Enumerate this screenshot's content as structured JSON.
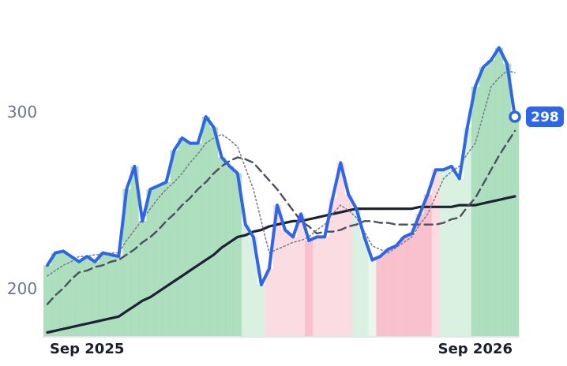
{
  "chart_data": {
    "type": "line",
    "categories": [
      null,
      null,
      null,
      null,
      null,
      "Sep 2025",
      null,
      null,
      null,
      null,
      null,
      null,
      null,
      null,
      null,
      null,
      null,
      null,
      null,
      null,
      null,
      null,
      null,
      null,
      null,
      null,
      null,
      null,
      null,
      null,
      null,
      null,
      null,
      null,
      null,
      null,
      null,
      null,
      null,
      null,
      null,
      null,
      null,
      null,
      null,
      null,
      null,
      null,
      null,
      null,
      null,
      null,
      null,
      null,
      "Sep 2026",
      null,
      null,
      null,
      null,
      null
    ],
    "series": [
      {
        "color": "#2f66e8",
        "style": "solid",
        "width": 4,
        "values": [
          214,
          221,
          222,
          219,
          216,
          219,
          216,
          221,
          220,
          219,
          257,
          270,
          239,
          257,
          259,
          261,
          279,
          286,
          283,
          283,
          298,
          292,
          275,
          270,
          266,
          237,
          230,
          203,
          212,
          248,
          234,
          230,
          243,
          228,
          230,
          230,
          252,
          272,
          254,
          246,
          230,
          217,
          219,
          223,
          225,
          230,
          232,
          243,
          254,
          268,
          268,
          270,
          263,
          292,
          315,
          326,
          330,
          337,
          328,
          298
        ]
      },
      {
        "color": "#7a8190",
        "style": "dotted",
        "width": 1.6,
        "values": [
          208,
          211,
          214,
          216,
          219,
          219,
          220,
          220,
          221,
          221,
          228,
          234,
          240,
          246,
          252,
          257,
          261,
          266,
          272,
          277,
          283,
          286,
          288,
          285,
          281,
          269,
          257,
          239,
          221,
          223,
          225,
          227,
          228,
          230,
          234,
          237,
          243,
          248,
          245,
          241,
          233,
          225,
          223,
          221,
          224,
          227,
          230,
          237,
          243,
          253,
          263,
          267,
          270,
          277,
          283,
          299,
          315,
          320,
          324,
          323
        ]
      },
      {
        "color": "#4a5060",
        "style": "dashed",
        "width": 2.4,
        "values": [
          192,
          197,
          201,
          206,
          210,
          211,
          213,
          214,
          216,
          217,
          220,
          223,
          227,
          230,
          234,
          239,
          243,
          248,
          252,
          257,
          261,
          266,
          270,
          273,
          275,
          274,
          272,
          267,
          262,
          257,
          251,
          245,
          239,
          236,
          232,
          233,
          233,
          234,
          236,
          237,
          239,
          239,
          238,
          238,
          237,
          237,
          237,
          237,
          237,
          237,
          238,
          240,
          241,
          247,
          252,
          260,
          268,
          276,
          283,
          290
        ]
      },
      {
        "color": "#1c2233",
        "style": "solid",
        "width": 3.2,
        "values": [
          176,
          177,
          178,
          179,
          180,
          181,
          182,
          183,
          184,
          185,
          188,
          191,
          194,
          196,
          199,
          202,
          205,
          208,
          211,
          214,
          217,
          220,
          224,
          227,
          230,
          231,
          233,
          234,
          236,
          237,
          238,
          239,
          239,
          240,
          241,
          242,
          243,
          244,
          245,
          246,
          246,
          246,
          246,
          246,
          246,
          246,
          246,
          247,
          247,
          247,
          247,
          247,
          248,
          248,
          248,
          249,
          250,
          251,
          252,
          253
        ]
      }
    ],
    "zone_colors": [
      "#9fd8b2",
      "#9fd8b2",
      "#9fd8b2",
      "#9fd8b2",
      "#9fd8b2",
      "#9fd8b2",
      "#9fd8b2",
      "#9fd8b2",
      "#9fd8b2",
      "#9fd8b2",
      "#9fd8b2",
      "#9fd8b2",
      "#9fd8b2",
      "#9fd8b2",
      "#9fd8b2",
      "#9fd8b2",
      "#9fd8b2",
      "#9fd8b2",
      "#9fd8b2",
      "#9fd8b2",
      "#9fd8b2",
      "#9fd8b2",
      "#9fd8b2",
      "#9fd8b2",
      "#9fd8b2",
      "#d3eedc",
      "#d3eedc",
      "#d3eedc",
      "#fbd6de",
      "#fbd6de",
      "#fbd6de",
      "#fbd6de",
      "#fbd6de",
      "#f8b6c4",
      "#fbd6de",
      "#fbd6de",
      "#fbd6de",
      "#fbd6de",
      "#fbd6de",
      "#d3eedc",
      "#d3eedc",
      "#e8f5ec",
      "#f8b6c4",
      "#f8b6c4",
      "#f8b6c4",
      "#f8b6c4",
      "#f8b6c4",
      "#f8b6c4",
      "#f8b6c4",
      "#fbd6de",
      "#d3eedc",
      "#d3eedc",
      "#d3eedc",
      "#d3eedc",
      "#9fd8b2",
      "#9fd8b2",
      "#9fd8b2",
      "#9fd8b2",
      "#9fd8b2",
      "#9fd8b2"
    ],
    "ylim": [
      174,
      364
    ],
    "yticks": [
      200,
      300
    ]
  }
}
